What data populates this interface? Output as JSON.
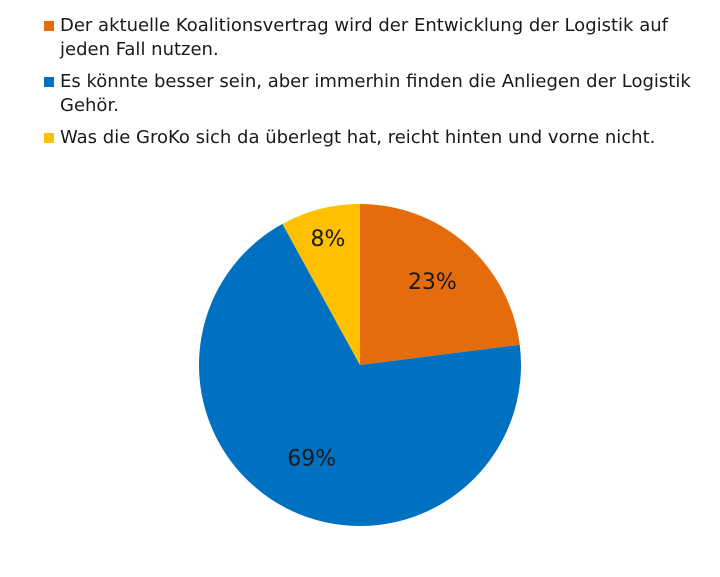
{
  "chart_data": {
    "type": "pie",
    "title": "",
    "categories": [
      "Der aktuelle Koalitionsvertrag wird der Entwicklung der Logistik auf jeden Fall nutzen.",
      "Es könnte besser sein, aber immerhin finden die Anliegen der Logistik Gehör.",
      "Was die GroKo sich da überlegt hat, reicht hinten und vorne nicht."
    ],
    "values": [
      23,
      69,
      8
    ],
    "value_labels": [
      "23%",
      "69%",
      "8%"
    ],
    "colors": [
      "#E46C0A",
      "#0070C0",
      "#FFC000"
    ],
    "legend_position": "top",
    "start_angle": "12 o'clock, clockwise"
  }
}
